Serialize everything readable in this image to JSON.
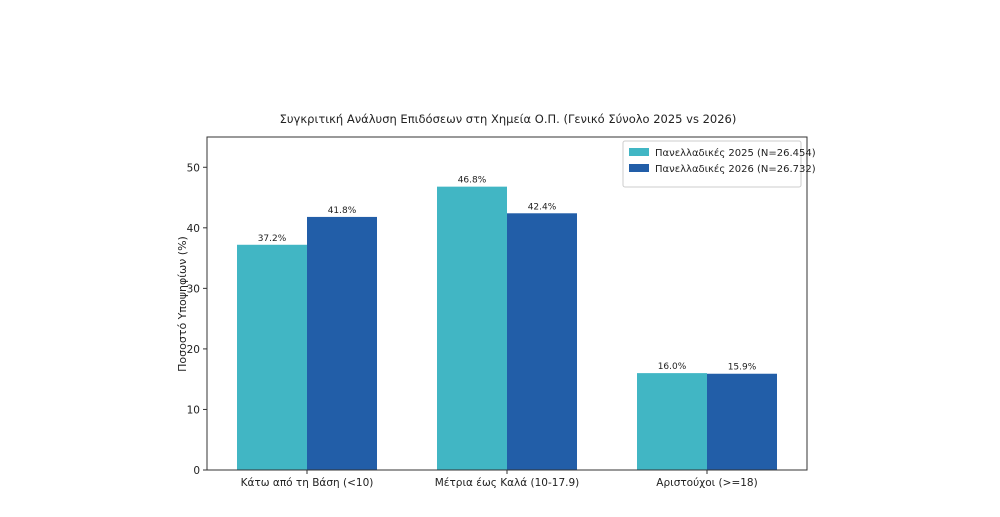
{
  "chart_data": {
    "type": "bar",
    "title": "Συγκριτική Ανάλυση Επιδόσεων στη Χημεία Ο.Π. (Γενικό Σύνολο 2025 vs 2026)",
    "xlabel": "",
    "ylabel": "Ποσοστό Υποψηφίων (%)",
    "ylim": [
      0,
      55
    ],
    "yticks": [
      0,
      10,
      20,
      30,
      40,
      50
    ],
    "categories": [
      "Κάτω από τη Βάση (<10)",
      "Μέτρια έως Καλά (10-17.9)",
      "Αριστούχοι (>=18)"
    ],
    "series": [
      {
        "name": "Πανελλαδικές 2025 (N=26.454)",
        "color": "#41b6c4",
        "values": [
          37.2,
          46.8,
          16.0
        ],
        "labels": [
          "37.2%",
          "46.8%",
          "16.0%"
        ]
      },
      {
        "name": "Πανελλαδικές 2026 (N=26.732)",
        "color": "#225ea8",
        "values": [
          41.8,
          42.4,
          15.9
        ],
        "labels": [
          "41.8%",
          "42.4%",
          "15.9%"
        ]
      }
    ],
    "grid": false,
    "legend_position": "top-right"
  }
}
